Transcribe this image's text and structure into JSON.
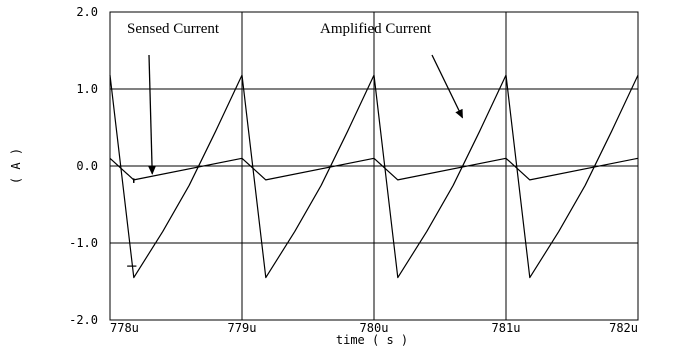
{
  "chart_data": {
    "type": "line",
    "title": "",
    "xlabel": "time ( s )",
    "ylabel": "( A )",
    "xlim": [
      778,
      782
    ],
    "ylim": [
      -2.0,
      2.0
    ],
    "x_ticks": [
      778,
      779,
      780,
      781,
      782
    ],
    "x_tick_labels": [
      "778u",
      "779u",
      "780u",
      "781u",
      "782u"
    ],
    "y_ticks": [
      -2.0,
      -1.0,
      0.0,
      1.0,
      2.0
    ],
    "y_tick_labels": [
      "-2.0",
      "-1.0",
      "0.0",
      "1.0",
      "2.0"
    ],
    "grid": true,
    "series": [
      {
        "name": "Sensed Current",
        "x": [
          778.0,
          778.18,
          779.0,
          779.18,
          780.0,
          780.18,
          781.0,
          781.18,
          782.0
        ],
        "y": [
          0.1,
          -0.18,
          0.1,
          -0.18,
          0.1,
          -0.18,
          0.1,
          -0.18,
          0.1
        ]
      },
      {
        "name": "Amplified Current",
        "x": [
          778.0,
          778.18,
          778.4,
          778.6,
          778.8,
          779.0,
          779.18,
          779.4,
          779.6,
          779.8,
          780.0,
          780.18,
          780.4,
          780.6,
          780.8,
          781.0,
          781.18,
          781.4,
          781.6,
          781.8,
          782.0
        ],
        "y": [
          1.18,
          -1.45,
          -0.85,
          -0.25,
          0.45,
          1.18,
          -1.45,
          -0.85,
          -0.25,
          0.45,
          1.18,
          -1.45,
          -0.85,
          -0.25,
          0.45,
          1.18,
          -1.45,
          -0.85,
          -0.25,
          0.45,
          1.18
        ]
      }
    ],
    "annotations": [
      {
        "text": "Sensed Current",
        "arrow_to": [
          778.32,
          -0.18
        ]
      },
      {
        "text": "Amplified Current",
        "arrow_to": [
          780.67,
          0.55
        ]
      }
    ]
  }
}
